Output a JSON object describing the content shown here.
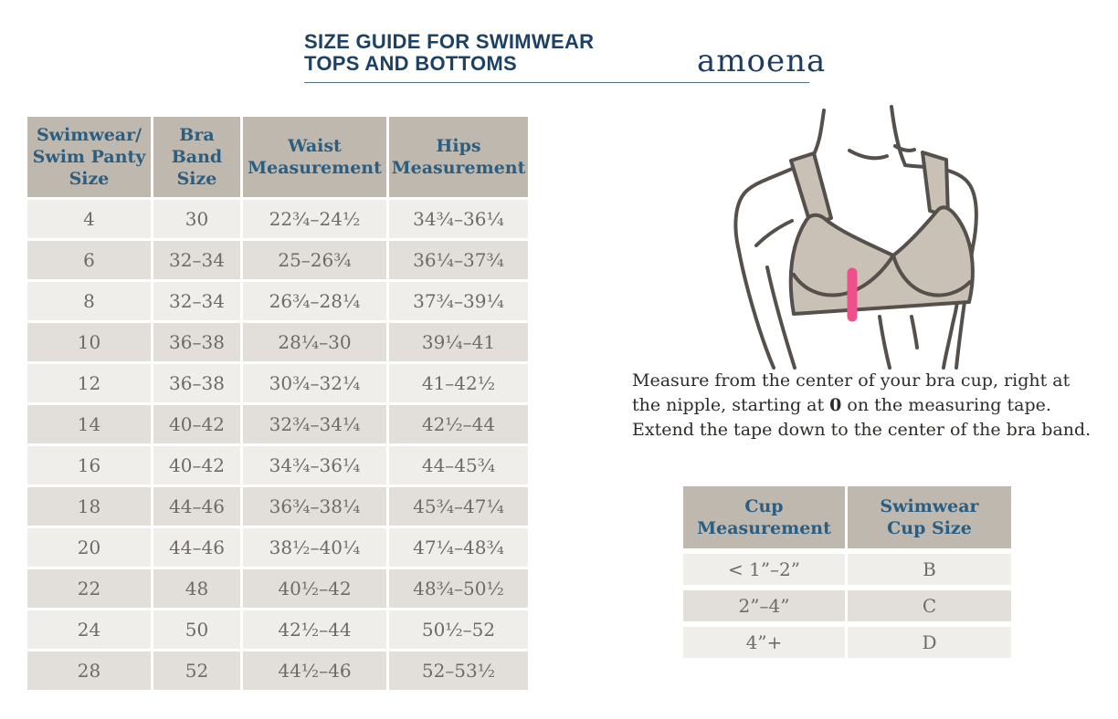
{
  "header": {
    "title_line1": "SIZE GUIDE FOR SWIMWEAR",
    "title_line2": "TOPS AND BOTTOMS",
    "logo": "amoena"
  },
  "size_table": {
    "columns": [
      "Swimwear/\nSwim Panty\nSize",
      "Bra\nBand\nSize",
      "Waist\nMeasurement",
      "Hips\nMeasurement"
    ],
    "rows": [
      [
        "4",
        "30",
        "22¾–24½",
        "34¾–36¼"
      ],
      [
        "6",
        "32–34",
        "25–26¾",
        "36¼–37¾"
      ],
      [
        "8",
        "32–34",
        "26¾–28¼",
        "37¾–39¼"
      ],
      [
        "10",
        "36–38",
        "28¼–30",
        "39¼–41"
      ],
      [
        "12",
        "36–38",
        "30¾–32¼",
        "41–42½"
      ],
      [
        "14",
        "40–42",
        "32¾–34¼",
        "42½–44"
      ],
      [
        "16",
        "40–42",
        "34¾–36¼",
        "44–45¾"
      ],
      [
        "18",
        "44–46",
        "36¾–38¼",
        "45¾–47¼"
      ],
      [
        "20",
        "44–46",
        "38½–40¼",
        "47¼–48¾"
      ],
      [
        "22",
        "48",
        "40½–42",
        "48¾–50½"
      ],
      [
        "24",
        "50",
        "42½–44",
        "50½–52"
      ],
      [
        "28",
        "52",
        "44½–46",
        "52–53½"
      ]
    ]
  },
  "instructions": {
    "line1": "Measure from the center of your bra cup, right at",
    "line2_before_bold": "the nipple, starting at ",
    "line2_bold": "0",
    "line2_after_bold": " on the measuring tape.",
    "line3": "Extend the tape down to the center of the bra band."
  },
  "cup_table": {
    "columns": [
      "Cup\nMeasurement",
      "Swimwear\nCup Size"
    ],
    "rows": [
      [
        "< 1”–2”",
        "B"
      ],
      [
        "2”–4”",
        "C"
      ],
      [
        "4”+",
        "D"
      ]
    ]
  },
  "colors": {
    "title_navy": "#1d4164",
    "header_cell_bg": "#bfb8af",
    "header_cell_text": "#2b5e80",
    "row_light": "#f0eeeb",
    "row_dark": "#e2ded9",
    "cell_text": "#6e6a65",
    "measure_line_pink": "#ef4f8b",
    "bra_fill": "#c9c0b6",
    "bra_outline": "#55504c"
  }
}
